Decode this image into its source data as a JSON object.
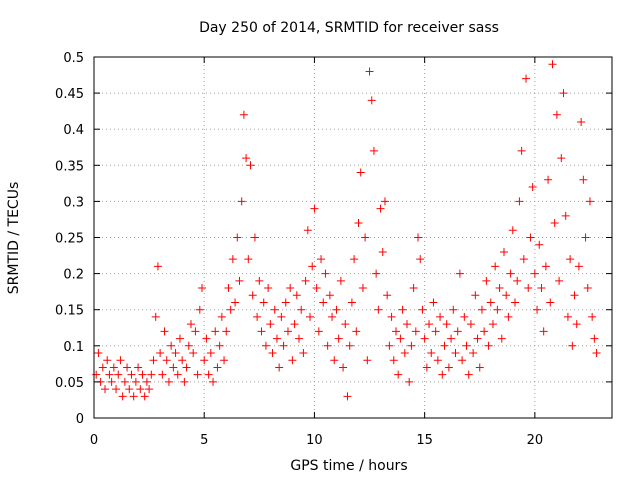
{
  "chart_data": {
    "type": "scatter",
    "title": "Day 250 of 2014, SRMTID for receiver sass",
    "xlabel": "GPS time / hours",
    "ylabel": "SRMTID / TECUs",
    "xlim": [
      0,
      23.5
    ],
    "ylim": [
      0,
      0.5
    ],
    "xticks": [
      0,
      5,
      10,
      15,
      20
    ],
    "xtick_labels": [
      "0",
      "5",
      "10",
      "15",
      "20"
    ],
    "yticks": [
      0,
      0.05,
      0.1,
      0.15,
      0.2,
      0.25,
      0.3,
      0.35,
      0.4,
      0.45,
      0.5
    ],
    "ytick_labels": [
      "0",
      "0.05",
      "0.1",
      "0.15",
      "0.2",
      "0.25",
      "0.3",
      "0.35",
      "0.4",
      "0.45",
      "0.5"
    ],
    "grid": true,
    "marker": "+",
    "marker_color": "#ff0000",
    "series": [
      {
        "name": "SRMTID",
        "points": [
          [
            0.1,
            0.06
          ],
          [
            0.2,
            0.09
          ],
          [
            0.3,
            0.05
          ],
          [
            0.4,
            0.07
          ],
          [
            0.5,
            0.04
          ],
          [
            0.6,
            0.08
          ],
          [
            0.7,
            0.06
          ],
          [
            0.8,
            0.05
          ],
          [
            0.9,
            0.07
          ],
          [
            1.0,
            0.04
          ],
          [
            1.1,
            0.06
          ],
          [
            1.2,
            0.08
          ],
          [
            1.3,
            0.03
          ],
          [
            1.4,
            0.05
          ],
          [
            1.5,
            0.07
          ],
          [
            1.6,
            0.04
          ],
          [
            1.7,
            0.06
          ],
          [
            1.8,
            0.03
          ],
          [
            1.9,
            0.05
          ],
          [
            2.0,
            0.07
          ],
          [
            2.1,
            0.04
          ],
          [
            2.2,
            0.06
          ],
          [
            2.3,
            0.03
          ],
          [
            2.4,
            0.05
          ],
          [
            2.5,
            0.04
          ],
          [
            2.6,
            0.06
          ],
          [
            2.7,
            0.08
          ],
          [
            2.8,
            0.14
          ],
          [
            2.9,
            0.21
          ],
          [
            3.0,
            0.09
          ],
          [
            3.1,
            0.06
          ],
          [
            3.2,
            0.12
          ],
          [
            3.3,
            0.08
          ],
          [
            3.4,
            0.05
          ],
          [
            3.5,
            0.1
          ],
          [
            3.6,
            0.07
          ],
          [
            3.7,
            0.09
          ],
          [
            3.8,
            0.06
          ],
          [
            3.9,
            0.11
          ],
          [
            4.0,
            0.08
          ],
          [
            4.1,
            0.05
          ],
          [
            4.2,
            0.07
          ],
          [
            4.3,
            0.1
          ],
          [
            4.4,
            0.13
          ],
          [
            4.5,
            0.09
          ],
          [
            4.6,
            0.12
          ],
          [
            4.7,
            0.06
          ],
          [
            4.8,
            0.15
          ],
          [
            4.9,
            0.18
          ],
          [
            5.0,
            0.08
          ],
          [
            5.1,
            0.11
          ],
          [
            5.2,
            0.06
          ],
          [
            5.3,
            0.09
          ],
          [
            5.4,
            0.05
          ],
          [
            5.5,
            0.12
          ],
          [
            5.6,
            0.07
          ],
          [
            5.7,
            0.1
          ],
          [
            5.8,
            0.14
          ],
          [
            5.9,
            0.08
          ],
          [
            6.0,
            0.12
          ],
          [
            6.1,
            0.18
          ],
          [
            6.2,
            0.15
          ],
          [
            6.3,
            0.22
          ],
          [
            6.4,
            0.16
          ],
          [
            6.5,
            0.25
          ],
          [
            6.6,
            0.19
          ],
          [
            6.7,
            0.3
          ],
          [
            6.8,
            0.42
          ],
          [
            6.9,
            0.36
          ],
          [
            7.0,
            0.22
          ],
          [
            7.1,
            0.35
          ],
          [
            7.2,
            0.17
          ],
          [
            7.3,
            0.25
          ],
          [
            7.4,
            0.14
          ],
          [
            7.5,
            0.19
          ],
          [
            7.6,
            0.12
          ],
          [
            7.7,
            0.16
          ],
          [
            7.8,
            0.1
          ],
          [
            7.9,
            0.18
          ],
          [
            8.0,
            0.13
          ],
          [
            8.1,
            0.09
          ],
          [
            8.2,
            0.15
          ],
          [
            8.3,
            0.11
          ],
          [
            8.4,
            0.07
          ],
          [
            8.5,
            0.14
          ],
          [
            8.6,
            0.1
          ],
          [
            8.7,
            0.16
          ],
          [
            8.8,
            0.12
          ],
          [
            8.9,
            0.18
          ],
          [
            9.0,
            0.08
          ],
          [
            9.1,
            0.13
          ],
          [
            9.2,
            0.17
          ],
          [
            9.3,
            0.11
          ],
          [
            9.4,
            0.15
          ],
          [
            9.5,
            0.09
          ],
          [
            9.6,
            0.19
          ],
          [
            9.7,
            0.26
          ],
          [
            9.8,
            0.14
          ],
          [
            9.9,
            0.21
          ],
          [
            10.0,
            0.29
          ],
          [
            10.1,
            0.18
          ],
          [
            10.2,
            0.12
          ],
          [
            10.3,
            0.22
          ],
          [
            10.4,
            0.16
          ],
          [
            10.5,
            0.2
          ],
          [
            10.6,
            0.1
          ],
          [
            10.7,
            0.17
          ],
          [
            10.8,
            0.14
          ],
          [
            10.9,
            0.08
          ],
          [
            11.0,
            0.15
          ],
          [
            11.1,
            0.11
          ],
          [
            11.2,
            0.19
          ],
          [
            11.3,
            0.07
          ],
          [
            11.4,
            0.13
          ],
          [
            11.5,
            0.03
          ],
          [
            11.6,
            0.1
          ],
          [
            11.7,
            0.16
          ],
          [
            11.8,
            0.22
          ],
          [
            11.9,
            0.12
          ],
          [
            12.0,
            0.27
          ],
          [
            12.1,
            0.34
          ],
          [
            12.2,
            0.18
          ],
          [
            12.3,
            0.25
          ],
          [
            12.4,
            0.08
          ],
          [
            12.5,
            0.48
          ],
          [
            12.6,
            0.44
          ],
          [
            12.7,
            0.37
          ],
          [
            12.8,
            0.2
          ],
          [
            12.9,
            0.15
          ],
          [
            13.0,
            0.29
          ],
          [
            13.1,
            0.23
          ],
          [
            13.2,
            0.3
          ],
          [
            13.3,
            0.17
          ],
          [
            13.4,
            0.1
          ],
          [
            13.5,
            0.14
          ],
          [
            13.6,
            0.08
          ],
          [
            13.7,
            0.12
          ],
          [
            13.8,
            0.06
          ],
          [
            13.9,
            0.11
          ],
          [
            14.0,
            0.15
          ],
          [
            14.1,
            0.09
          ],
          [
            14.2,
            0.13
          ],
          [
            14.3,
            0.05
          ],
          [
            14.4,
            0.1
          ],
          [
            14.5,
            0.18
          ],
          [
            14.6,
            0.12
          ],
          [
            14.7,
            0.25
          ],
          [
            14.8,
            0.22
          ],
          [
            14.9,
            0.15
          ],
          [
            15.0,
            0.11
          ],
          [
            15.1,
            0.07
          ],
          [
            15.2,
            0.13
          ],
          [
            15.3,
            0.09
          ],
          [
            15.4,
            0.16
          ],
          [
            15.5,
            0.12
          ],
          [
            15.6,
            0.08
          ],
          [
            15.7,
            0.14
          ],
          [
            15.8,
            0.06
          ],
          [
            15.9,
            0.1
          ],
          [
            16.0,
            0.13
          ],
          [
            16.1,
            0.07
          ],
          [
            16.2,
            0.11
          ],
          [
            16.3,
            0.15
          ],
          [
            16.4,
            0.09
          ],
          [
            16.5,
            0.12
          ],
          [
            16.6,
            0.2
          ],
          [
            16.7,
            0.08
          ],
          [
            16.8,
            0.14
          ],
          [
            16.9,
            0.1
          ],
          [
            17.0,
            0.06
          ],
          [
            17.1,
            0.13
          ],
          [
            17.2,
            0.09
          ],
          [
            17.3,
            0.17
          ],
          [
            17.4,
            0.11
          ],
          [
            17.5,
            0.07
          ],
          [
            17.6,
            0.15
          ],
          [
            17.7,
            0.12
          ],
          [
            17.8,
            0.19
          ],
          [
            17.9,
            0.1
          ],
          [
            18.0,
            0.16
          ],
          [
            18.1,
            0.13
          ],
          [
            18.2,
            0.21
          ],
          [
            18.3,
            0.15
          ],
          [
            18.4,
            0.18
          ],
          [
            18.5,
            0.11
          ],
          [
            18.6,
            0.23
          ],
          [
            18.7,
            0.17
          ],
          [
            18.8,
            0.14
          ],
          [
            18.9,
            0.2
          ],
          [
            19.0,
            0.26
          ],
          [
            19.1,
            0.16
          ],
          [
            19.2,
            0.19
          ],
          [
            19.3,
            0.3
          ],
          [
            19.4,
            0.37
          ],
          [
            19.5,
            0.22
          ],
          [
            19.6,
            0.47
          ],
          [
            19.7,
            0.18
          ],
          [
            19.8,
            0.25
          ],
          [
            19.9,
            0.32
          ],
          [
            20.0,
            0.2
          ],
          [
            20.1,
            0.15
          ],
          [
            20.2,
            0.24
          ],
          [
            20.3,
            0.18
          ],
          [
            20.4,
            0.12
          ],
          [
            20.5,
            0.21
          ],
          [
            20.6,
            0.33
          ],
          [
            20.7,
            0.16
          ],
          [
            20.8,
            0.49
          ],
          [
            20.9,
            0.27
          ],
          [
            21.0,
            0.42
          ],
          [
            21.1,
            0.19
          ],
          [
            21.2,
            0.36
          ],
          [
            21.3,
            0.45
          ],
          [
            21.4,
            0.28
          ],
          [
            21.5,
            0.14
          ],
          [
            21.6,
            0.22
          ],
          [
            21.7,
            0.1
          ],
          [
            21.8,
            0.17
          ],
          [
            21.9,
            0.13
          ],
          [
            22.0,
            0.21
          ],
          [
            22.1,
            0.41
          ],
          [
            22.2,
            0.33
          ],
          [
            22.3,
            0.25
          ],
          [
            22.4,
            0.18
          ],
          [
            22.5,
            0.3
          ],
          [
            22.6,
            0.14
          ],
          [
            22.7,
            0.11
          ],
          [
            22.8,
            0.09
          ]
        ]
      }
    ]
  }
}
